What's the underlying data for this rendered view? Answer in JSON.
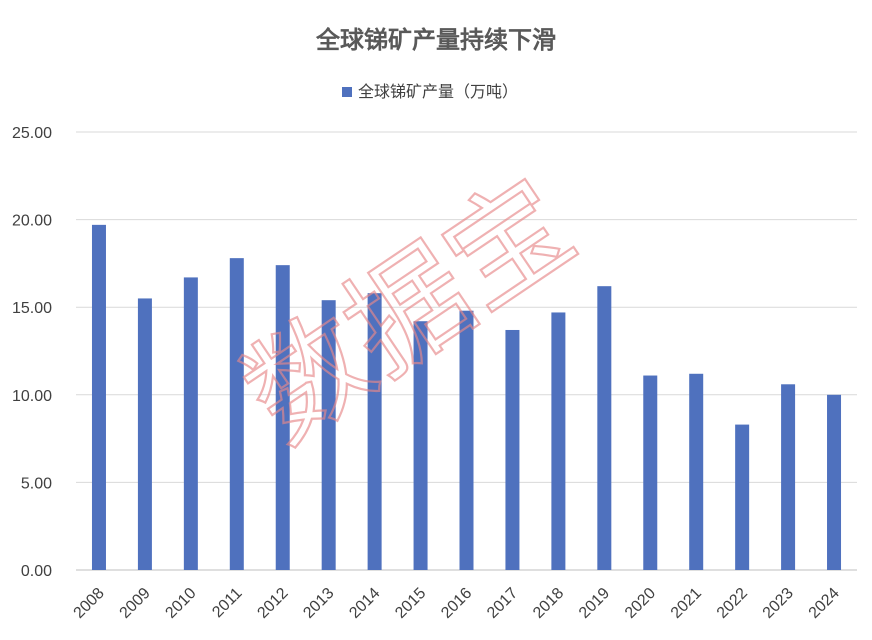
{
  "watermark": "数据宝",
  "colors": {
    "bar": "#4f71be",
    "grid": "#d9d9d9",
    "text": "#404040",
    "title": "#595959",
    "watermark": "#e8888a"
  },
  "chart_data": {
    "type": "bar",
    "title": "全球锑矿产量持续下滑",
    "xlabel": "",
    "ylabel": "",
    "categories": [
      "2008",
      "2009",
      "2010",
      "2011",
      "2012",
      "2013",
      "2014",
      "2015",
      "2016",
      "2017",
      "2018",
      "2019",
      "2020",
      "2021",
      "2022",
      "2023",
      "2024"
    ],
    "series": [
      {
        "name": "全球锑矿产量（万吨）",
        "values": [
          19.7,
          15.5,
          16.7,
          17.8,
          17.4,
          15.4,
          15.8,
          14.2,
          14.8,
          13.7,
          14.7,
          16.2,
          11.1,
          11.2,
          8.3,
          10.6,
          10.0
        ]
      }
    ],
    "ylim": [
      0,
      25
    ],
    "yticks": [
      "0.00",
      "5.00",
      "10.00",
      "15.00",
      "20.00",
      "25.00"
    ],
    "grid": true,
    "legend_position": "top-center"
  }
}
